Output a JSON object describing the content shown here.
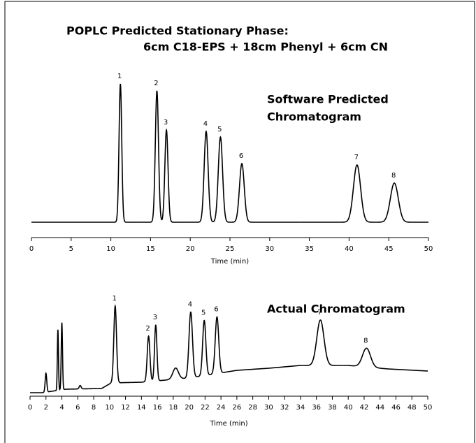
{
  "chart_data": [
    {
      "type": "chromatogram",
      "title": "POPLC Predicted Stationary Phase:",
      "subtitle": "6cm C18-EPS + 18cm Phenyl + 6cm CN",
      "annotation": [
        "Software Predicted",
        "Chromatogram"
      ],
      "xlabel": "Time (min)",
      "xlim": [
        0,
        50
      ],
      "xticks": [
        0,
        5,
        10,
        15,
        20,
        25,
        30,
        35,
        40,
        45,
        50
      ],
      "ylim": [
        0,
        1
      ],
      "color": "#000000",
      "peaks": {
        "labels": [
          "1",
          "2",
          "3",
          "4",
          "5",
          "6",
          "7",
          "8"
        ],
        "x": [
          11.2,
          15.8,
          17.0,
          22.0,
          23.8,
          26.5,
          41.0,
          45.7
        ],
        "values": [
          0.99,
          0.94,
          0.66,
          0.65,
          0.61,
          0.42,
          0.41,
          0.28
        ],
        "widths": [
          0.17,
          0.2,
          0.2,
          0.25,
          0.27,
          0.3,
          0.45,
          0.5
        ]
      }
    },
    {
      "type": "chromatogram",
      "annotation": [
        "Actual Chromatogram"
      ],
      "xlabel": "Time (min)",
      "xlim": [
        0,
        50
      ],
      "xticks": [
        0,
        2,
        4,
        6,
        8,
        10,
        12,
        14,
        16,
        18,
        20,
        22,
        24,
        26,
        28,
        30,
        32,
        34,
        36,
        38,
        40,
        42,
        44,
        46,
        48,
        50
      ],
      "ylim": [
        0,
        1.45
      ],
      "color": "#000000",
      "baseline": {
        "x": [
          0,
          1.5,
          4.5,
          9,
          10.2,
          14,
          20,
          26,
          30,
          34,
          40,
          45,
          50
        ],
        "values": [
          0.03,
          0.03,
          0.08,
          0.09,
          0.17,
          0.18,
          0.24,
          0.35,
          0.38,
          0.42,
          0.42,
          0.37,
          0.34
        ]
      },
      "peaks": {
        "labels": [
          null,
          null,
          null,
          null,
          "1",
          "2",
          "3",
          null,
          "4",
          "5",
          "6",
          "7",
          "8"
        ],
        "x": [
          2.0,
          3.5,
          4.0,
          6.3,
          10.7,
          14.9,
          15.8,
          18.3,
          20.2,
          21.9,
          23.5,
          36.5,
          42.3
        ],
        "values": [
          0.27,
          0.87,
          0.96,
          0.05,
          1.1,
          0.65,
          0.8,
          0.16,
          0.94,
          0.79,
          0.81,
          0.65,
          0.27
        ],
        "widths": [
          0.1,
          0.07,
          0.08,
          0.12,
          0.17,
          0.17,
          0.15,
          0.35,
          0.22,
          0.2,
          0.22,
          0.45,
          0.5
        ]
      }
    }
  ]
}
